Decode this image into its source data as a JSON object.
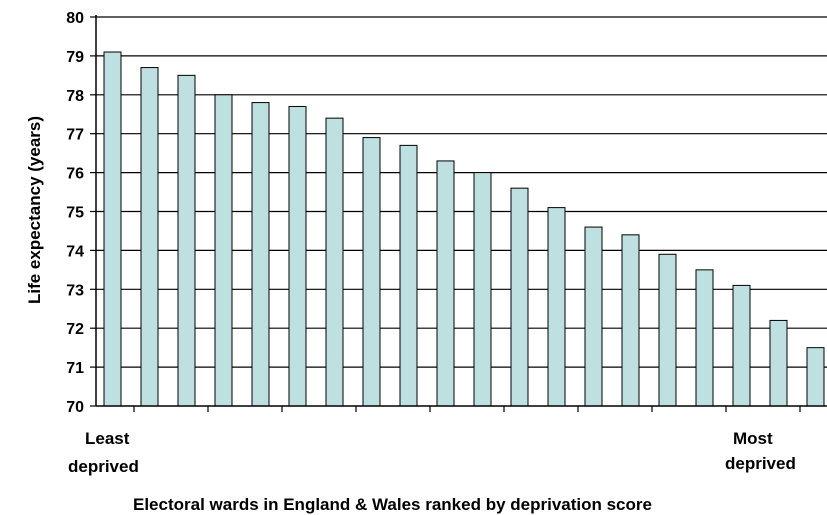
{
  "chart_data": {
    "type": "bar",
    "title": "",
    "xlabel": "Electoral wards in England & Wales ranked by deprivation score",
    "ylabel": "Life expectancy (years)",
    "ylim": [
      70,
      80
    ],
    "yticks": [
      "70",
      "71",
      "72",
      "73",
      "74",
      "75",
      "76",
      "77",
      "78",
      "79",
      "80"
    ],
    "grid": true,
    "x_end_labels": {
      "left": [
        "Least",
        "deprived"
      ],
      "right": [
        "Most",
        "deprived"
      ]
    },
    "bar_color": "#bfe0e0",
    "values": [
      79.1,
      78.7,
      78.5,
      78.0,
      77.8,
      77.7,
      77.4,
      76.9,
      76.7,
      76.3,
      76.0,
      75.6,
      75.1,
      74.6,
      74.4,
      73.9,
      73.5,
      73.1,
      72.2,
      71.5
    ]
  }
}
